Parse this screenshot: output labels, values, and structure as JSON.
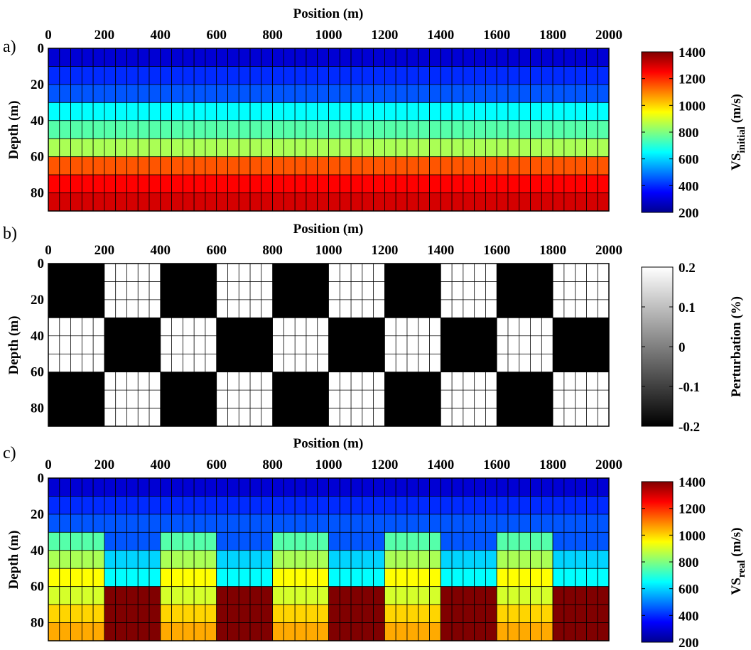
{
  "panels": [
    {
      "label": "a)",
      "xlabel": "Position (m)",
      "ylabel": "Depth (m)",
      "x_ticks": [
        "0",
        "200",
        "400",
        "600",
        "800",
        "1000",
        "1200",
        "1400",
        "1600",
        "1800",
        "2000"
      ],
      "y_ticks": [
        "0",
        "20",
        "40",
        "60",
        "80"
      ],
      "colorbar": {
        "label_main": "VS",
        "label_sub": "initial",
        "label_unit": " (m/s)",
        "ticks": [
          "1400",
          "1200",
          "1000",
          "800",
          "600",
          "400",
          "200"
        ],
        "colormap": "jet"
      }
    },
    {
      "label": "b)",
      "xlabel": "Position (m)",
      "ylabel": "Depth (m)",
      "x_ticks": [
        "0",
        "200",
        "400",
        "600",
        "800",
        "1000",
        "1200",
        "1400",
        "1600",
        "1800",
        "2000"
      ],
      "y_ticks": [
        "0",
        "20",
        "40",
        "60",
        "80"
      ],
      "colorbar": {
        "label_main": "Perturbation (%)",
        "label_sub": "",
        "label_unit": "",
        "ticks": [
          "0.2",
          "0.1",
          "0",
          "-0.1",
          "-0.2"
        ],
        "colormap": "gray"
      }
    },
    {
      "label": "c)",
      "xlabel": "Position (m)",
      "ylabel": "Depth (m)",
      "x_ticks": [
        "0",
        "200",
        "400",
        "600",
        "800",
        "1000",
        "1200",
        "1400",
        "1600",
        "1800",
        "2000"
      ],
      "y_ticks": [
        "0",
        "20",
        "40",
        "60",
        "80"
      ],
      "colorbar": {
        "label_main": "VS",
        "label_sub": "real",
        "label_unit": " (m/s)",
        "ticks": [
          "1400",
          "1200",
          "1000",
          "800",
          "600",
          "400",
          "200"
        ],
        "colormap": "jet"
      }
    }
  ],
  "chart_data": [
    {
      "type": "heatmap",
      "xlabel": "Position (m)",
      "ylabel": "Depth (m)",
      "xlim": [
        0,
        2000
      ],
      "ylim": [
        90,
        0
      ],
      "cell_width": 40,
      "layer_depths": [
        0,
        10,
        20,
        30,
        40,
        50,
        60,
        70,
        80,
        90
      ],
      "clim": [
        200,
        1400
      ],
      "colorbar_label": "VS_initial (m/s)",
      "layer_vs": [
        300,
        400,
        450,
        650,
        750,
        850,
        1150,
        1250,
        1300
      ]
    },
    {
      "type": "heatmap",
      "xlabel": "Position (m)",
      "ylabel": "Depth (m)",
      "xlim": [
        0,
        2000
      ],
      "ylim": [
        90,
        0
      ],
      "cell_width": 40,
      "clim": [
        -0.2,
        0.2
      ],
      "colorbar_label": "Perturbation (%)",
      "checker_x_edges": [
        0,
        200,
        400,
        600,
        800,
        1000,
        1200,
        1400,
        1600,
        1800,
        2000
      ],
      "checker_depth_edges": [
        0,
        30,
        60,
        90
      ],
      "perturbation": [
        [
          -0.2,
          0.2,
          -0.2,
          0.2,
          -0.2,
          0.2,
          -0.2,
          0.2,
          -0.2,
          0.2
        ],
        [
          0.2,
          -0.2,
          0.2,
          -0.2,
          0.2,
          -0.2,
          0.2,
          -0.2,
          0.2,
          -0.2
        ],
        [
          -0.2,
          0.2,
          -0.2,
          0.2,
          -0.2,
          0.2,
          -0.2,
          0.2,
          -0.2,
          0.2
        ]
      ]
    },
    {
      "type": "heatmap",
      "xlabel": "Position (m)",
      "ylabel": "Depth (m)",
      "xlim": [
        0,
        2000
      ],
      "ylim": [
        90,
        0
      ],
      "cell_width": 40,
      "layer_depths": [
        0,
        10,
        20,
        30,
        40,
        50,
        60,
        70,
        80,
        90
      ],
      "clim": [
        200,
        1400
      ],
      "colorbar_label": "VS_real (m/s)",
      "vs_columns_A": [
        300,
        400,
        450,
        750,
        850,
        950,
        900,
        1000,
        1050
      ],
      "vs_columns_B": [
        300,
        400,
        450,
        450,
        600,
        650,
        1400,
        1500,
        1550
      ],
      "column_pattern": [
        "A",
        "B",
        "A",
        "B",
        "A",
        "B",
        "A",
        "B",
        "A",
        "B"
      ]
    }
  ]
}
